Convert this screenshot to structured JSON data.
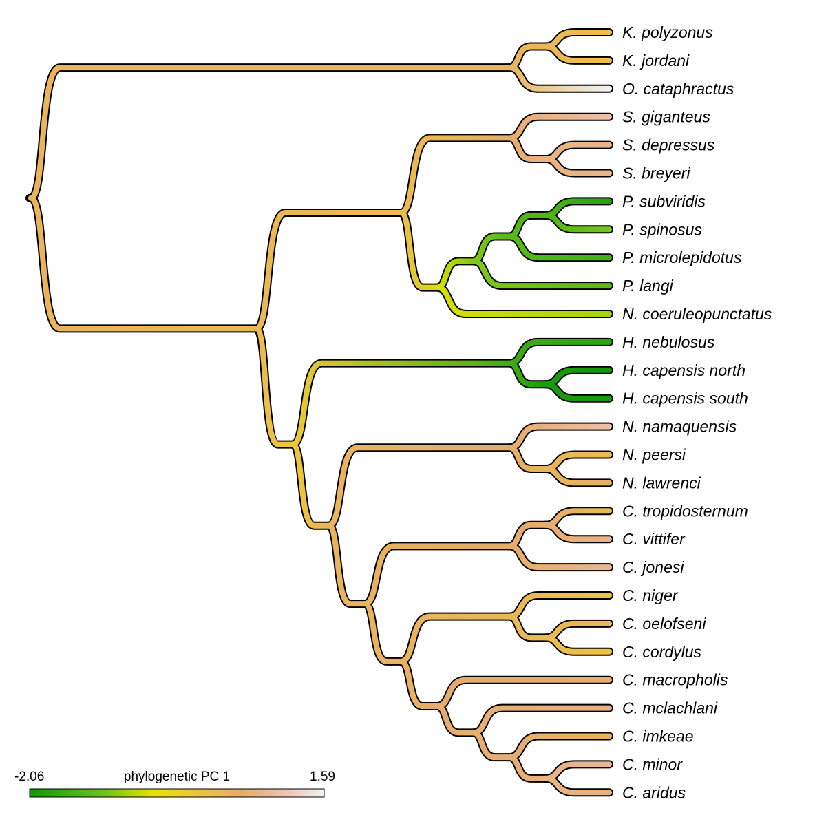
{
  "taxa": [
    {
      "id": 0,
      "genus": "K.",
      "species": "polyzonus",
      "pc1": 0.1
    },
    {
      "id": 1,
      "genus": "K.",
      "species": "jordani",
      "pc1": 0.05
    },
    {
      "id": 2,
      "genus": "O.",
      "species": "cataphractus",
      "pc1": 1.59
    },
    {
      "id": 3,
      "genus": "S.",
      "species": "giganteus",
      "pc1": 1.05
    },
    {
      "id": 4,
      "genus": "S.",
      "species": "depressus",
      "pc1": 0.8
    },
    {
      "id": 5,
      "genus": "S.",
      "species": "breyeri",
      "pc1": 0.8
    },
    {
      "id": 6,
      "genus": "P.",
      "species": "subviridis",
      "pc1": -1.85
    },
    {
      "id": 7,
      "genus": "P.",
      "species": "spinosus",
      "pc1": -1.1
    },
    {
      "id": 8,
      "genus": "P.",
      "species": "microlepidotus",
      "pc1": -1.55
    },
    {
      "id": 9,
      "genus": "P.",
      "species": "langi",
      "pc1": -1.35
    },
    {
      "id": 10,
      "genus": "N.",
      "species": "coeruleopunctatus",
      "pc1": -0.85
    },
    {
      "id": 11,
      "genus": "H.",
      "species": "nebulosus",
      "pc1": -1.8
    },
    {
      "id": 12,
      "genus": "H.",
      "species": "capensis north",
      "pc1": -2.06
    },
    {
      "id": 13,
      "genus": "H.",
      "species": "capensis south",
      "pc1": -2.0
    },
    {
      "id": 14,
      "genus": "N.",
      "species": "namaquensis",
      "pc1": 1.05
    },
    {
      "id": 15,
      "genus": "N.",
      "species": "peersi",
      "pc1": 0.15
    },
    {
      "id": 16,
      "genus": "N.",
      "species": "lawrenci",
      "pc1": 0.5
    },
    {
      "id": 17,
      "genus": "C.",
      "species": "tropidosternum",
      "pc1": 0.2
    },
    {
      "id": 18,
      "genus": "C.",
      "species": "vittifer",
      "pc1": 0.75
    },
    {
      "id": 19,
      "genus": "C.",
      "species": "jonesi",
      "pc1": 0.85
    },
    {
      "id": 20,
      "genus": "C.",
      "species": "niger",
      "pc1": 0.0
    },
    {
      "id": 21,
      "genus": "C.",
      "species": "oelofseni",
      "pc1": 0.3
    },
    {
      "id": 22,
      "genus": "C.",
      "species": "cordylus",
      "pc1": 0.05
    },
    {
      "id": 23,
      "genus": "C.",
      "species": "macropholis",
      "pc1": 0.5
    },
    {
      "id": 24,
      "genus": "C.",
      "species": "mclachlani",
      "pc1": 0.7
    },
    {
      "id": 25,
      "genus": "C.",
      "species": "imkeae",
      "pc1": 0.4
    },
    {
      "id": 26,
      "genus": "C.",
      "species": "minor",
      "pc1": 0.85
    },
    {
      "id": 27,
      "genus": "C.",
      "species": "aridus",
      "pc1": 0.7
    }
  ],
  "tree": {
    "v": 0.35,
    "c": [
      {
        "v": 0.35,
        "c": [
          {
            "v": 0.3,
            "c": [
              {
                "tip": 0
              },
              {
                "tip": 1
              }
            ]
          },
          {
            "tip": 2
          }
        ]
      },
      {
        "v": 0.25,
        "c": [
          {
            "v": 0.2,
            "c": [
              {
                "v": 0.55,
                "c": [
                  {
                    "tip": 3
                  },
                  {
                    "v": 0.75,
                    "c": [
                      {
                        "tip": 4
                      },
                      {
                        "tip": 5
                      }
                    ]
                  }
                ]
              },
              {
                "v": -0.6,
                "c": [
                  {
                    "v": -1.05,
                    "c": [
                      {
                        "v": -1.35,
                        "c": [
                          {
                            "v": -1.45,
                            "c": [
                              {
                                "tip": 6
                              },
                              {
                                "tip": 7
                              }
                            ]
                          },
                          {
                            "tip": 8
                          }
                        ]
                      },
                      {
                        "tip": 9
                      }
                    ]
                  },
                  {
                    "tip": 10
                  }
                ]
              }
            ]
          },
          {
            "v": -0.1,
            "c": [
              {
                "v": -1.6,
                "c": [
                  {
                    "tip": 11
                  },
                  {
                    "v": -1.95,
                    "c": [
                      {
                        "tip": 12
                      },
                      {
                        "tip": 13
                      }
                    ]
                  }
                ]
              },
              {
                "v": 0.35,
                "c": [
                  {
                    "v": 0.55,
                    "c": [
                      {
                        "tip": 14
                      },
                      {
                        "v": 0.35,
                        "c": [
                          {
                            "tip": 15
                          },
                          {
                            "tip": 16
                          }
                        ]
                      }
                    ]
                  },
                  {
                    "v": 0.4,
                    "c": [
                      {
                        "v": 0.55,
                        "c": [
                          {
                            "v": 0.6,
                            "c": [
                              {
                                "tip": 17
                              },
                              {
                                "tip": 18
                              }
                            ]
                          },
                          {
                            "tip": 19
                          }
                        ]
                      },
                      {
                        "v": 0.4,
                        "c": [
                          {
                            "v": 0.3,
                            "c": [
                              {
                                "tip": 20
                              },
                              {
                                "v": 0.2,
                                "c": [
                                  {
                                    "tip": 21
                                  },
                                  {
                                    "tip": 22
                                  }
                                ]
                              }
                            ]
                          },
                          {
                            "v": 0.55,
                            "c": [
                              {
                                "tip": 23
                              },
                              {
                                "v": 0.65,
                                "c": [
                                  {
                                    "tip": 24
                                  },
                                  {
                                    "v": 0.6,
                                    "c": [
                                      {
                                        "tip": 25
                                      },
                                      {
                                        "v": 0.75,
                                        "c": [
                                          {
                                            "tip": 26
                                          },
                                          {
                                            "tip": 27
                                          }
                                        ]
                                      }
                                    ]
                                  }
                                ]
                              }
                            ]
                          }
                        ]
                      }
                    ]
                  }
                ]
              }
            ]
          }
        ]
      }
    ]
  },
  "legend": {
    "title": "phylogenetic PC 1",
    "min_label": "-2.06",
    "max_label": "1.59",
    "min": -2.06,
    "max": 1.59
  },
  "palette": {
    "stops": [
      {
        "t": 0.0,
        "color": "#10960c"
      },
      {
        "t": 0.25,
        "color": "#6cc31c"
      },
      {
        "t": 0.42,
        "color": "#e4e400"
      },
      {
        "t": 0.55,
        "color": "#eec63c"
      },
      {
        "t": 0.72,
        "color": "#e6ab6c"
      },
      {
        "t": 0.87,
        "color": "#efc2b2"
      },
      {
        "t": 1.0,
        "color": "#f2f2f2"
      }
    ],
    "outline": "#000000"
  }
}
